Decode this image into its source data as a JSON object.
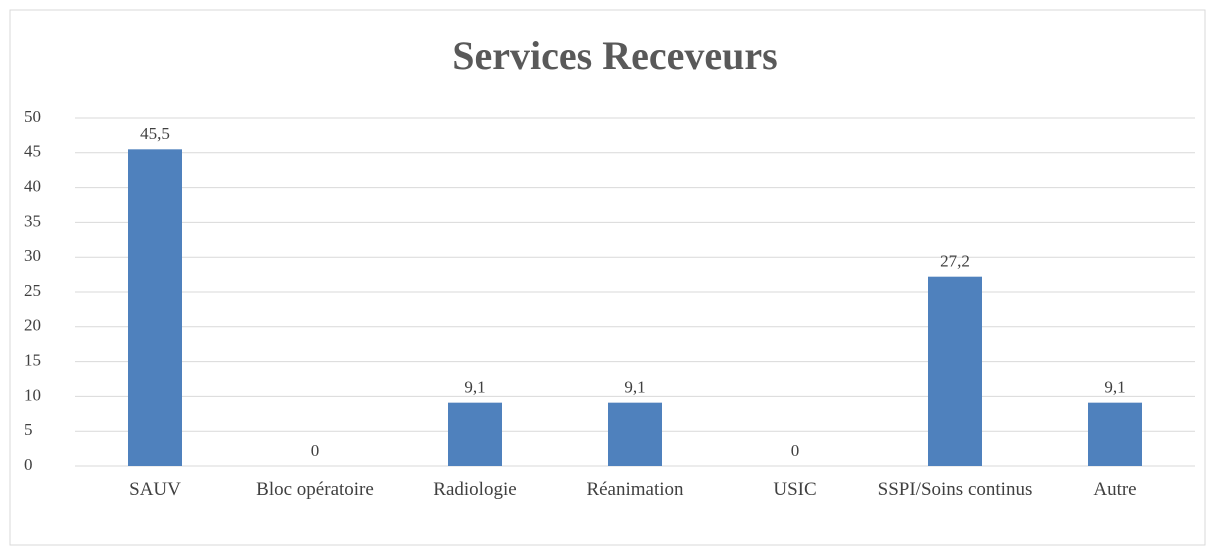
{
  "chart_data": {
    "type": "bar",
    "title": "Services Receveurs",
    "categories": [
      "SAUV",
      "Bloc opératoire",
      "Radiologie",
      "Réanimation",
      "USIC",
      "SSPI/Soins continus",
      "Autre"
    ],
    "values": [
      45.5,
      0,
      9.1,
      9.1,
      0,
      27.2,
      9.1
    ],
    "value_labels": [
      "45,5",
      "0",
      "9,1",
      "9,1",
      "0",
      "27,2",
      "9,1"
    ],
    "color": "#4f81bd",
    "ylim": [
      0,
      50
    ],
    "yticks": [
      0,
      5,
      10,
      15,
      20,
      25,
      30,
      35,
      40,
      45,
      50
    ],
    "grid": true
  }
}
